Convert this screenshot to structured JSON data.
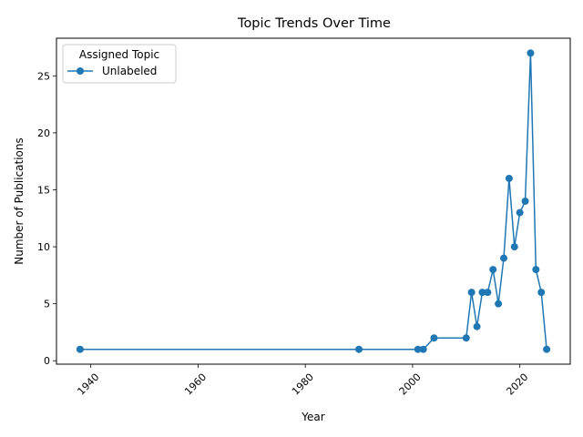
{
  "chart_data": {
    "type": "line",
    "title": "Topic Trends Over Time",
    "xlabel": "Year",
    "ylabel": "Number of Publications",
    "xlim": [
      1933.6,
      2029.4
    ],
    "ylim": [
      -0.3,
      28.3
    ],
    "xticks": [
      1940,
      1960,
      1980,
      2000,
      2020
    ],
    "yticks": [
      0,
      5,
      10,
      15,
      20,
      25
    ],
    "grid": false,
    "legend": {
      "title": "Assigned Topic",
      "placement": "top-left"
    },
    "series": [
      {
        "name": "Unlabeled",
        "color": "#1f77b4",
        "marker": "circle",
        "x": [
          1938,
          1990,
          2001,
          2002,
          2004,
          2010,
          2011,
          2012,
          2013,
          2014,
          2015,
          2016,
          2017,
          2018,
          2019,
          2020,
          2021,
          2022,
          2023,
          2024,
          2025
        ],
        "y": [
          1,
          1,
          1,
          1,
          2,
          2,
          6,
          3,
          6,
          6,
          8,
          5,
          9,
          16,
          10,
          13,
          14,
          27,
          8,
          6,
          1
        ]
      }
    ]
  }
}
